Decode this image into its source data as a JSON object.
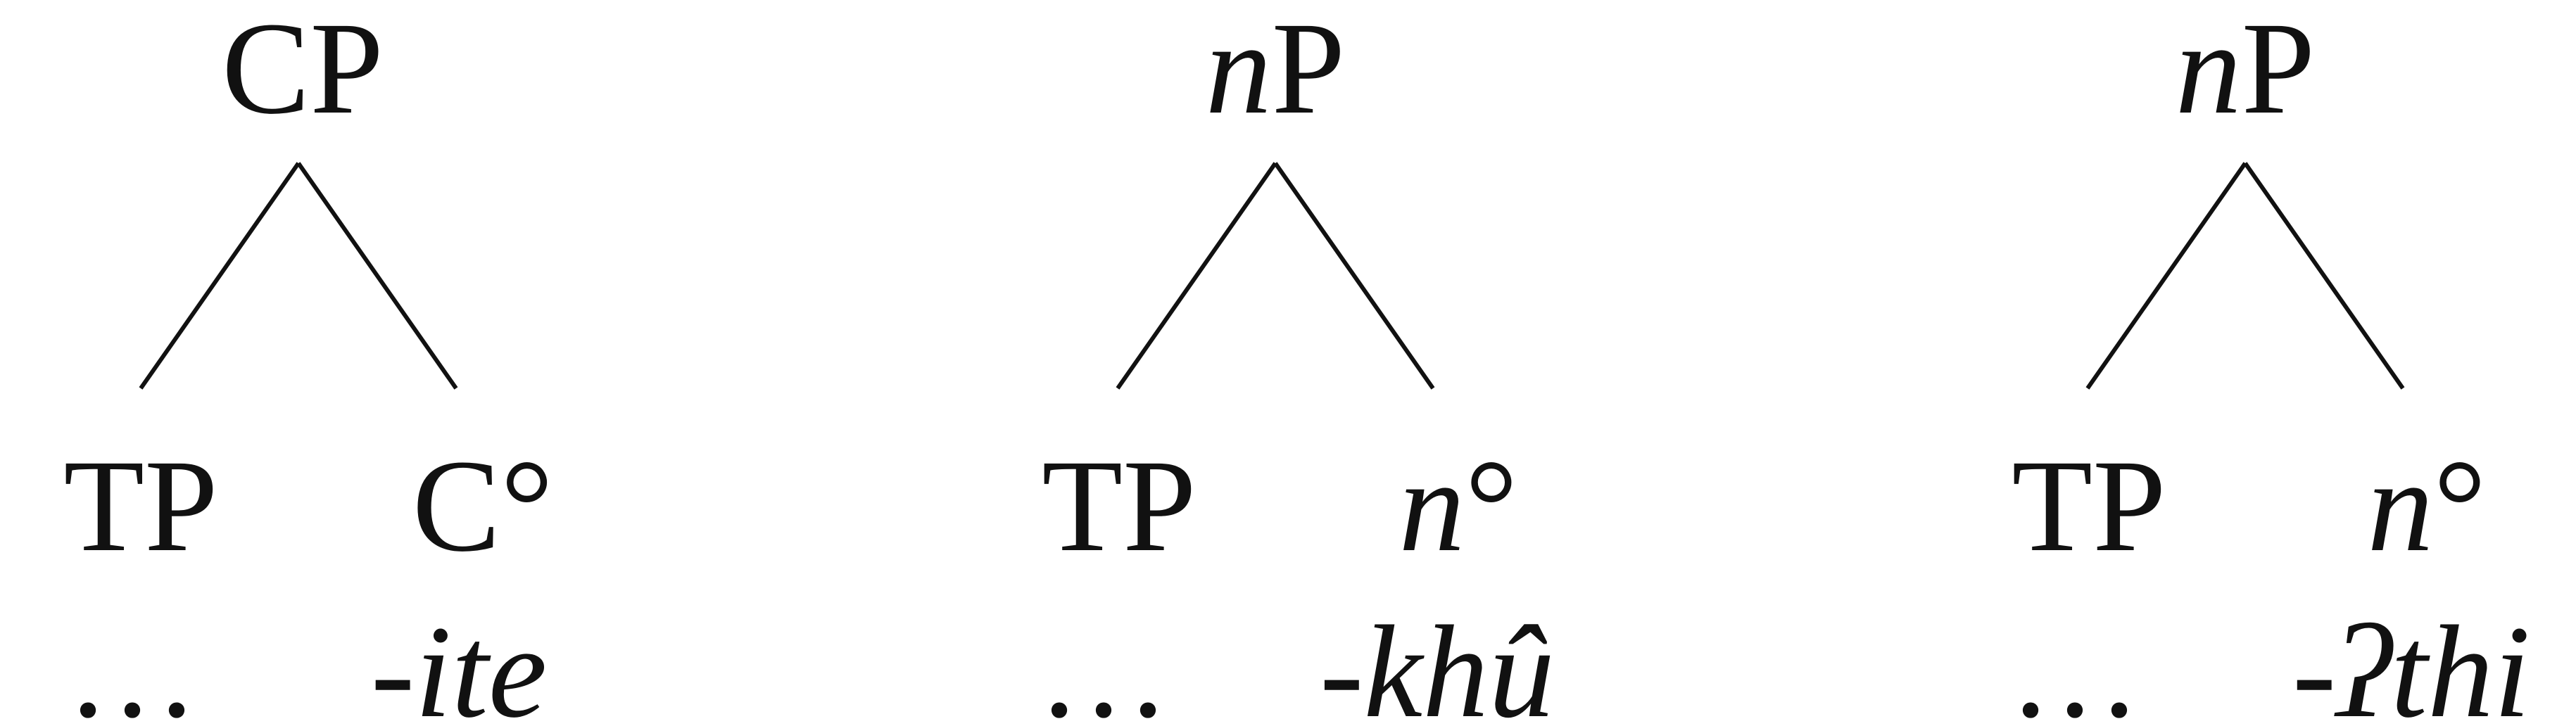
{
  "trees": [
    {
      "root": {
        "head": "",
        "tail": "CP"
      },
      "left_daughter": "TP",
      "right_daughter": {
        "head": "",
        "tail": "C°"
      },
      "left_exponent": "…",
      "right_exponent": "-ite"
    },
    {
      "root": {
        "head": "n",
        "tail": "P"
      },
      "left_daughter": "TP",
      "right_daughter": {
        "head": "n",
        "tail": "°"
      },
      "left_exponent": "…",
      "right_exponent": "-khû"
    },
    {
      "root": {
        "head": "n",
        "tail": "P"
      },
      "left_daughter": "TP",
      "right_daughter": {
        "head": "n",
        "tail": "°"
      },
      "left_exponent": "…",
      "right_exponent": "-ʔthi"
    }
  ]
}
